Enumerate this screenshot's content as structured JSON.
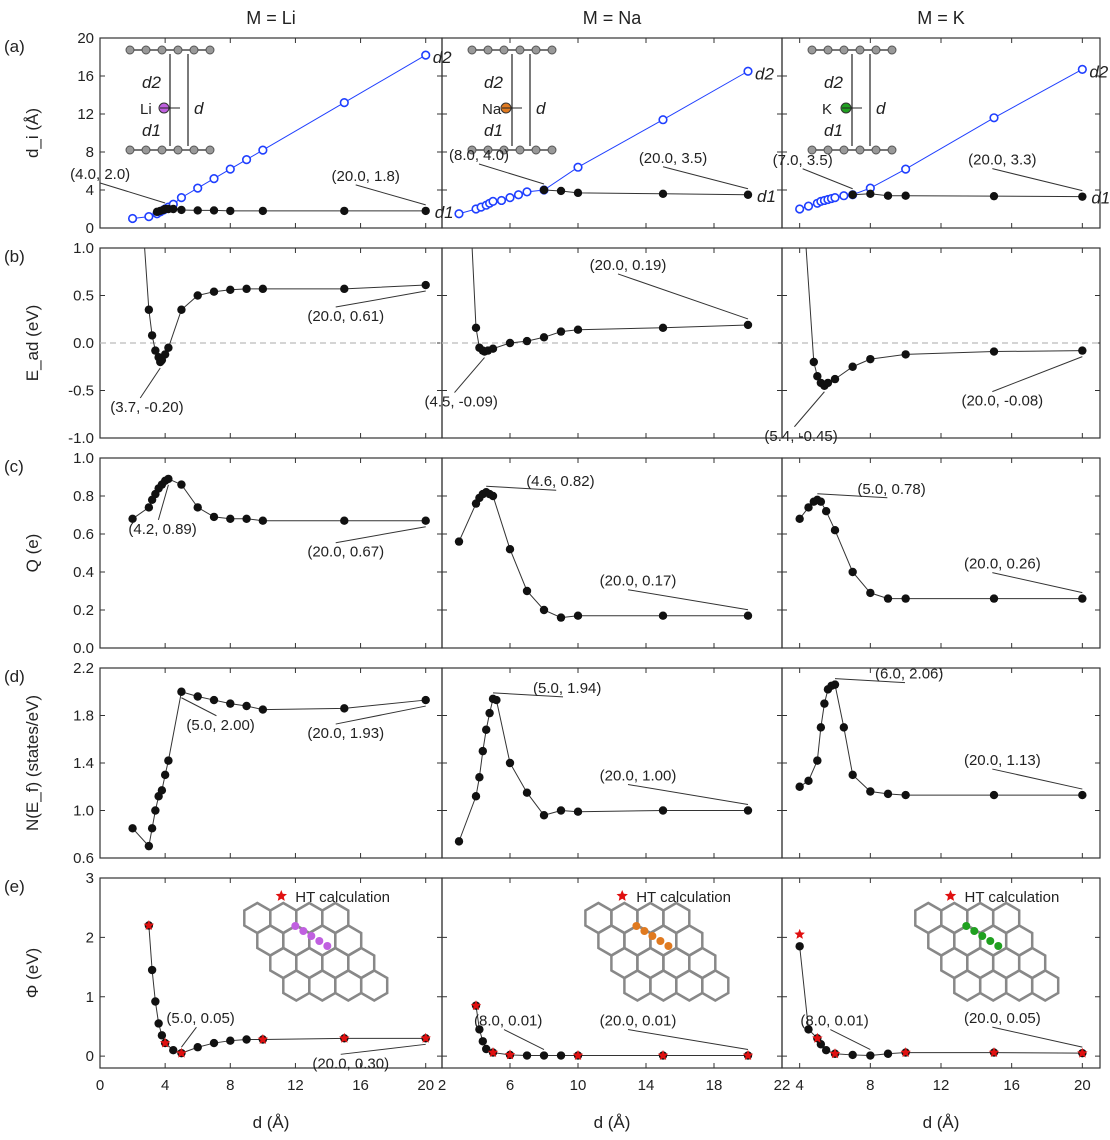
{
  "columns": [
    "M = Li",
    "M = Na",
    "M = K"
  ],
  "panel_labels": [
    "(a)",
    "(b)",
    "(c)",
    "(d)",
    "(e)"
  ],
  "colors": {
    "black_series": "#111111",
    "d2_series": "#1f3fff",
    "ht_star": "#e01010",
    "dashed_zero": "#bbbbbb",
    "Li_atom": "#c060e0",
    "Na_atom": "#e07a20",
    "K_atom": "#20a020"
  },
  "icons": [
    "bilayer-schematic-icon",
    "graphene-lattice-icon",
    "red-star-icon"
  ],
  "chart_data": [
    {
      "type": "line",
      "row": "a",
      "column": "M = Li",
      "ylabel": "d_i (Å)",
      "ylim": [
        0,
        20
      ],
      "yticks": [
        0,
        4,
        8,
        12,
        16,
        20
      ],
      "xlim": [
        0,
        21
      ],
      "xticks": [
        0,
        4,
        8,
        12,
        16,
        20
      ],
      "inset_labels": {
        "atom": "Li",
        "d2": "d2",
        "d1": "d1",
        "d": "d"
      },
      "series": [
        {
          "name": "d2",
          "style": "open-blue",
          "x": [
            2,
            3,
            3.5,
            3.7,
            3.9,
            4.0,
            4.2,
            4.5,
            5,
            6,
            7,
            8,
            9,
            10,
            15,
            20
          ],
          "y": [
            1.0,
            1.2,
            1.5,
            1.7,
            1.9,
            2.0,
            2.2,
            2.5,
            3.2,
            4.2,
            5.2,
            6.2,
            7.2,
            8.2,
            13.2,
            18.2
          ]
        },
        {
          "name": "d1",
          "style": "filled-black",
          "x": [
            3.5,
            3.7,
            3.9,
            4.0,
            4.2,
            4.5,
            5,
            6,
            7,
            8,
            10,
            15,
            20
          ],
          "y": [
            1.7,
            1.8,
            1.9,
            2.0,
            2.0,
            2.0,
            1.9,
            1.85,
            1.85,
            1.8,
            1.8,
            1.8,
            1.8
          ]
        }
      ],
      "annotations": [
        "(4.0, 2.0)",
        "(20.0, 1.8)"
      ]
    },
    {
      "type": "line",
      "row": "a",
      "column": "M = Na",
      "ylim": [
        0,
        20
      ],
      "yticks": [
        0,
        4,
        8,
        12,
        16,
        20
      ],
      "xlim": [
        2,
        22
      ],
      "xticks": [
        2,
        6,
        10,
        14,
        18,
        22
      ],
      "inset_labels": {
        "atom": "Na",
        "d2": "d2",
        "d1": "d1",
        "d": "d"
      },
      "series": [
        {
          "name": "d2",
          "style": "open-blue",
          "x": [
            3,
            4,
            4.3,
            4.6,
            4.8,
            5,
            5.5,
            6,
            6.5,
            7,
            8,
            10,
            15,
            20
          ],
          "y": [
            1.5,
            2.0,
            2.2,
            2.4,
            2.6,
            2.8,
            2.9,
            3.2,
            3.5,
            3.8,
            4.0,
            6.4,
            11.4,
            16.5
          ]
        },
        {
          "name": "d1",
          "style": "filled-black",
          "x": [
            8,
            9,
            10,
            15,
            20
          ],
          "y": [
            4.0,
            3.9,
            3.7,
            3.6,
            3.5
          ]
        }
      ],
      "annotations": [
        "(8.0, 4.0)",
        "(20.0, 3.5)"
      ]
    },
    {
      "type": "line",
      "row": "a",
      "column": "M = K",
      "ylim": [
        0,
        20
      ],
      "yticks": [
        0,
        4,
        8,
        12,
        16,
        20
      ],
      "xlim": [
        3,
        21
      ],
      "xticks": [
        4,
        8,
        12,
        16,
        20
      ],
      "inset_labels": {
        "atom": "K",
        "d2": "d2",
        "d1": "d1",
        "d": "d"
      },
      "series": [
        {
          "name": "d2",
          "style": "open-blue",
          "x": [
            4,
            4.5,
            5,
            5.2,
            5.4,
            5.6,
            5.8,
            6,
            6.5,
            7,
            8,
            10,
            15,
            20
          ],
          "y": [
            2.0,
            2.3,
            2.6,
            2.8,
            2.9,
            3.0,
            3.1,
            3.2,
            3.4,
            3.5,
            4.2,
            6.2,
            11.6,
            16.7
          ]
        },
        {
          "name": "d1",
          "style": "filled-black",
          "x": [
            7,
            8,
            9,
            10,
            15,
            20
          ],
          "y": [
            3.5,
            3.6,
            3.4,
            3.4,
            3.35,
            3.3
          ]
        }
      ],
      "annotations": [
        "(7.0, 3.5)",
        "(20.0, 3.3)"
      ]
    },
    {
      "type": "line",
      "row": "b",
      "column": "M = Li",
      "ylabel": "E_ad (eV)",
      "ylim": [
        -1.0,
        1.0
      ],
      "yticks": [
        -1.0,
        -0.5,
        0.0,
        0.5,
        1.0
      ],
      "xlim": [
        0,
        21
      ],
      "xticks": [
        0,
        4,
        8,
        12,
        16,
        20
      ],
      "series": [
        {
          "x": [
            2.5,
            3.0,
            3.2,
            3.4,
            3.6,
            3.7,
            3.8,
            4.0,
            4.2,
            5,
            6,
            7,
            8,
            9,
            10,
            15,
            20
          ],
          "y": [
            1.6,
            0.35,
            0.08,
            -0.08,
            -0.15,
            -0.2,
            -0.18,
            -0.12,
            -0.05,
            0.35,
            0.5,
            0.54,
            0.56,
            0.57,
            0.57,
            0.57,
            0.61
          ]
        }
      ],
      "annotations": [
        "(3.7, -0.20)",
        "(20.0, 0.61)"
      ]
    },
    {
      "type": "line",
      "row": "b",
      "column": "M = Na",
      "ylim": [
        -1.0,
        1.0
      ],
      "yticks": [
        -1.0,
        -0.5,
        0.0,
        0.5,
        1.0
      ],
      "xlim": [
        2,
        22
      ],
      "xticks": [
        2,
        6,
        10,
        14,
        18,
        22
      ],
      "series": [
        {
          "x": [
            3.5,
            4.0,
            4.2,
            4.4,
            4.5,
            4.7,
            5.0,
            6,
            7,
            8,
            9,
            10,
            15,
            20
          ],
          "y": [
            2.0,
            0.16,
            -0.05,
            -0.08,
            -0.09,
            -0.08,
            -0.06,
            0.0,
            0.02,
            0.06,
            0.12,
            0.14,
            0.16,
            0.19
          ]
        }
      ],
      "annotations": [
        "(4.5, -0.09)",
        "(20.0, 0.19)"
      ]
    },
    {
      "type": "line",
      "row": "b",
      "column": "M = K",
      "ylim": [
        -1.0,
        1.0
      ],
      "yticks": [
        -1.0,
        -0.5,
        0.0,
        0.5,
        1.0
      ],
      "xlim": [
        3,
        21
      ],
      "xticks": [
        4,
        8,
        12,
        16,
        20
      ],
      "series": [
        {
          "x": [
            4.0,
            4.8,
            5.0,
            5.2,
            5.4,
            5.6,
            6.0,
            7,
            8,
            10,
            15,
            20
          ],
          "y": [
            2.0,
            -0.2,
            -0.35,
            -0.42,
            -0.45,
            -0.42,
            -0.38,
            -0.25,
            -0.17,
            -0.12,
            -0.09,
            -0.08
          ]
        }
      ],
      "annotations": [
        "(5.4, -0.45)",
        "(20.0, -0.08)"
      ]
    },
    {
      "type": "line",
      "row": "c",
      "column": "M = Li",
      "ylabel": "Q (e)",
      "ylim": [
        0.0,
        1.0
      ],
      "yticks": [
        0.0,
        0.2,
        0.4,
        0.6,
        0.8,
        1.0
      ],
      "xlim": [
        0,
        21
      ],
      "xticks": [
        0,
        4,
        8,
        12,
        16,
        20
      ],
      "series": [
        {
          "x": [
            2,
            3,
            3.2,
            3.4,
            3.6,
            3.8,
            4.0,
            4.2,
            5,
            6,
            7,
            8,
            9,
            10,
            15,
            20
          ],
          "y": [
            0.68,
            0.74,
            0.78,
            0.81,
            0.84,
            0.86,
            0.88,
            0.89,
            0.86,
            0.74,
            0.69,
            0.68,
            0.68,
            0.67,
            0.67,
            0.67
          ]
        }
      ],
      "annotations": [
        "(4.2, 0.89)",
        "(20.0, 0.67)"
      ]
    },
    {
      "type": "line",
      "row": "c",
      "column": "M = Na",
      "ylim": [
        0.0,
        1.0
      ],
      "yticks": [
        0.0,
        0.2,
        0.4,
        0.6,
        0.8,
        1.0
      ],
      "xlim": [
        2,
        22
      ],
      "xticks": [
        2,
        6,
        10,
        14,
        18,
        22
      ],
      "series": [
        {
          "x": [
            3,
            4,
            4.2,
            4.4,
            4.6,
            4.8,
            5,
            6,
            7,
            8,
            9,
            10,
            15,
            20
          ],
          "y": [
            0.56,
            0.76,
            0.79,
            0.81,
            0.82,
            0.81,
            0.8,
            0.52,
            0.3,
            0.2,
            0.16,
            0.17,
            0.17,
            0.17
          ]
        }
      ],
      "annotations": [
        "(4.6, 0.82)",
        "(20.0, 0.17)"
      ]
    },
    {
      "type": "line",
      "row": "c",
      "column": "M = K",
      "ylim": [
        0.0,
        1.0
      ],
      "yticks": [
        0.0,
        0.2,
        0.4,
        0.6,
        0.8,
        1.0
      ],
      "xlim": [
        3,
        21
      ],
      "xticks": [
        4,
        8,
        12,
        16,
        20
      ],
      "series": [
        {
          "x": [
            4,
            4.5,
            4.8,
            5.0,
            5.2,
            5.5,
            6,
            7,
            8,
            9,
            10,
            15,
            20
          ],
          "y": [
            0.68,
            0.74,
            0.77,
            0.78,
            0.77,
            0.72,
            0.62,
            0.4,
            0.29,
            0.26,
            0.26,
            0.26,
            0.26
          ]
        }
      ],
      "annotations": [
        "(5.0, 0.78)",
        "(20.0, 0.26)"
      ]
    },
    {
      "type": "line",
      "row": "d",
      "column": "M = Li",
      "ylabel": "N(E_f) (states/eV)",
      "ylim": [
        0.6,
        2.2
      ],
      "yticks": [
        0.6,
        1.0,
        1.4,
        1.8,
        2.2
      ],
      "xlim": [
        0,
        21
      ],
      "xticks": [
        0,
        4,
        8,
        12,
        16,
        20
      ],
      "series": [
        {
          "x": [
            2,
            3,
            3.2,
            3.4,
            3.6,
            3.8,
            4.0,
            4.2,
            5,
            6,
            7,
            8,
            9,
            10,
            15,
            20
          ],
          "y": [
            0.85,
            0.7,
            0.85,
            1.0,
            1.12,
            1.17,
            1.3,
            1.42,
            2.0,
            1.96,
            1.93,
            1.9,
            1.88,
            1.85,
            1.86,
            1.93
          ]
        }
      ],
      "annotations": [
        "(5.0, 2.00)",
        "(20.0, 1.93)"
      ]
    },
    {
      "type": "line",
      "row": "d",
      "column": "M = Na",
      "ylim": [
        0.6,
        2.2
      ],
      "yticks": [
        0.6,
        1.0,
        1.4,
        1.8,
        2.2
      ],
      "xlim": [
        2,
        22
      ],
      "xticks": [
        2,
        6,
        10,
        14,
        18,
        22
      ],
      "series": [
        {
          "x": [
            3,
            4,
            4.2,
            4.4,
            4.6,
            4.8,
            5.0,
            5.2,
            6,
            7,
            8,
            9,
            10,
            15,
            20
          ],
          "y": [
            0.74,
            1.12,
            1.28,
            1.5,
            1.68,
            1.82,
            1.94,
            1.93,
            1.4,
            1.15,
            0.96,
            1.0,
            0.99,
            1.0,
            1.0
          ]
        }
      ],
      "annotations": [
        "(5.0, 1.94)",
        "(20.0, 1.00)"
      ]
    },
    {
      "type": "line",
      "row": "d",
      "column": "M = K",
      "ylim": [
        0.6,
        2.2
      ],
      "yticks": [
        0.6,
        1.0,
        1.4,
        1.8,
        2.2
      ],
      "xlim": [
        3,
        21
      ],
      "xticks": [
        4,
        8,
        12,
        16,
        20
      ],
      "series": [
        {
          "x": [
            4,
            4.5,
            5,
            5.2,
            5.4,
            5.6,
            5.8,
            6.0,
            6.5,
            7,
            8,
            9,
            10,
            15,
            20
          ],
          "y": [
            1.2,
            1.25,
            1.42,
            1.7,
            1.9,
            2.02,
            2.05,
            2.06,
            1.7,
            1.3,
            1.16,
            1.14,
            1.13,
            1.13,
            1.13
          ]
        }
      ],
      "annotations": [
        "(6.0, 2.06)",
        "(20.0, 1.13)"
      ]
    },
    {
      "type": "line",
      "row": "e",
      "column": "M = Li",
      "ylabel": "Φ (eV)",
      "xlabel": "d (Å)",
      "ylim": [
        -0.2,
        3.0
      ],
      "yticks": [
        0.0,
        1.0,
        2.0,
        3.0
      ],
      "xlim": [
        0,
        21
      ],
      "xticks": [
        0,
        4,
        8,
        12,
        16,
        20
      ],
      "legend": "HT calculation",
      "series": [
        {
          "style": "filled-black",
          "x": [
            3.0,
            3.2,
            3.4,
            3.6,
            3.8,
            4.0,
            4.5,
            5.0,
            6,
            7,
            8,
            9,
            10,
            15,
            20
          ],
          "y": [
            2.2,
            1.45,
            0.92,
            0.55,
            0.35,
            0.22,
            0.1,
            0.05,
            0.15,
            0.22,
            0.26,
            0.28,
            0.28,
            0.3,
            0.3
          ]
        },
        {
          "name": "HT calculation",
          "style": "red-star",
          "x": [
            3.0,
            4.0,
            5.0,
            10,
            15,
            20
          ],
          "y": [
            2.2,
            0.22,
            0.05,
            0.28,
            0.3,
            0.3
          ]
        }
      ],
      "annotations": [
        "(5.0, 0.05)",
        "(20.0, 0.30)"
      ]
    },
    {
      "type": "line",
      "row": "e",
      "column": "M = Na",
      "xlabel": "d (Å)",
      "ylim": [
        -0.2,
        3.0
      ],
      "yticks": [
        0.0,
        1.0,
        2.0,
        3.0
      ],
      "xlim": [
        2,
        22
      ],
      "xticks": [
        2,
        6,
        10,
        14,
        18,
        22
      ],
      "legend": "HT calculation",
      "series": [
        {
          "style": "filled-black",
          "x": [
            4.0,
            4.2,
            4.4,
            4.6,
            5.0,
            6,
            7,
            8,
            9,
            10,
            15,
            20
          ],
          "y": [
            0.85,
            0.45,
            0.25,
            0.12,
            0.06,
            0.02,
            0.01,
            0.01,
            0.01,
            0.01,
            0.01,
            0.01
          ]
        },
        {
          "name": "HT calculation",
          "style": "red-star",
          "x": [
            4.0,
            5.0,
            6,
            10,
            15,
            20
          ],
          "y": [
            0.85,
            0.06,
            0.02,
            0.01,
            0.01,
            0.01
          ]
        }
      ],
      "annotations": [
        "(8.0, 0.01)",
        "(20.0, 0.01)"
      ]
    },
    {
      "type": "line",
      "row": "e",
      "column": "M = K",
      "xlabel": "d (Å)",
      "ylim": [
        -0.2,
        3.0
      ],
      "yticks": [
        0.0,
        1.0,
        2.0,
        3.0
      ],
      "xlim": [
        3,
        21
      ],
      "xticks": [
        4,
        8,
        12,
        16,
        20
      ],
      "legend": "HT calculation",
      "series": [
        {
          "style": "filled-black",
          "x": [
            4.0,
            4.5,
            5.0,
            5.2,
            5.5,
            6.0,
            7,
            8,
            9,
            10,
            15,
            20
          ],
          "y": [
            1.85,
            0.45,
            0.3,
            0.2,
            0.1,
            0.04,
            0.02,
            0.01,
            0.04,
            0.06,
            0.06,
            0.05
          ]
        },
        {
          "name": "HT calculation",
          "style": "red-star",
          "x": [
            4.0,
            5.0,
            6.0,
            10,
            15,
            20
          ],
          "y": [
            2.05,
            0.3,
            0.04,
            0.06,
            0.06,
            0.05
          ]
        }
      ],
      "annotations": [
        "(8.0, 0.01)",
        "(20.0, 0.05)"
      ]
    }
  ]
}
